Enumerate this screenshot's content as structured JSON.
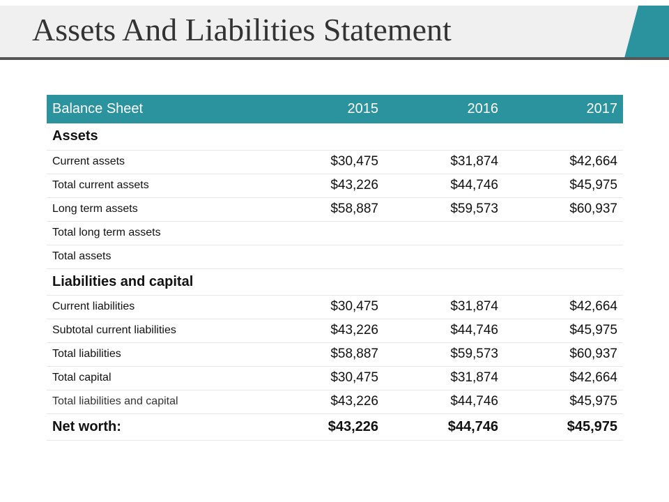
{
  "slide": {
    "title": "Assets And Liabilities Statement",
    "accent_color": "#2a939e"
  },
  "table": {
    "header": {
      "label": "Balance Sheet",
      "years": [
        "2015",
        "2016",
        "2017"
      ]
    },
    "sections": [
      {
        "heading": "Assets",
        "rows": [
          {
            "label": "Current  assets",
            "values": [
              "$30,475",
              "$31,874",
              "$42,664"
            ]
          },
          {
            "label": "Total current  assets",
            "values": [
              "$43,226",
              "$44,746",
              "$45,975"
            ]
          },
          {
            "label": "Long term  assets",
            "values": [
              "$58,887",
              "$59,573",
              "$60,937"
            ]
          },
          {
            "label": "Total long term  assets",
            "values": [
              "",
              "",
              ""
            ]
          },
          {
            "label": "Total assets",
            "values": [
              "",
              "",
              ""
            ]
          }
        ]
      },
      {
        "heading": "Liabilities and capital",
        "rows": [
          {
            "label": "Current liabilities",
            "values": [
              "$30,475",
              "$31,874",
              "$42,664"
            ]
          },
          {
            "label": "Subtotal current liabilities",
            "values": [
              "$43,226",
              "$44,746",
              "$45,975"
            ]
          },
          {
            "label": "Total liabilities",
            "values": [
              "$58,887",
              "$59,573",
              "$60,937"
            ]
          },
          {
            "label": "Total capital",
            "values": [
              "$30,475",
              "$31,874",
              "$42,664"
            ]
          },
          {
            "label": "Total liabilities and capital",
            "values": [
              "$43,226",
              "$44,746",
              "$45,975"
            ]
          }
        ]
      }
    ],
    "net_worth": {
      "label": "Net worth:",
      "values": [
        "$43,226",
        "$44,746",
        "$45,975"
      ]
    }
  }
}
